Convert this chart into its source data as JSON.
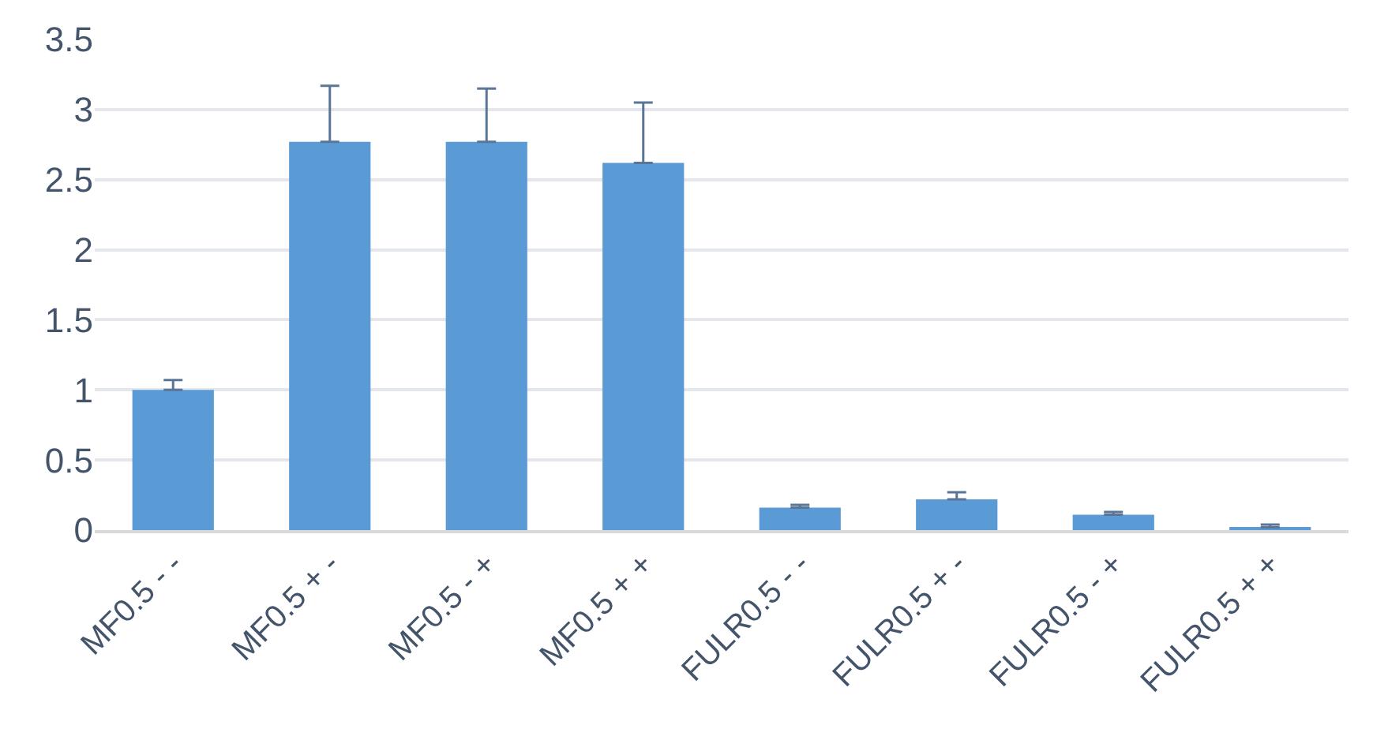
{
  "chart_data": {
    "type": "bar",
    "categories": [
      "MF0.5 - -",
      "MF0.5 + -",
      "MF0.5 - +",
      "MF0.5 + +",
      "FULR0.5 - -",
      "FULR0.5 + -",
      "FULR0.5 - +",
      "FULR0.5 + +"
    ],
    "values": [
      1.0,
      2.77,
      2.77,
      2.62,
      0.16,
      0.22,
      0.11,
      0.02
    ],
    "errors": [
      [
        1.0,
        1.07
      ],
      [
        2.77,
        3.17
      ],
      [
        2.77,
        3.15
      ],
      [
        2.62,
        3.05
      ],
      [
        0.16,
        0.18
      ],
      [
        0.22,
        0.27
      ],
      [
        0.11,
        0.13
      ],
      [
        0.02,
        0.04
      ]
    ],
    "color": "#5b9bd5",
    "ylim": [
      0,
      3.5
    ],
    "yticks": [
      0,
      0.5,
      1,
      1.5,
      2,
      2.5,
      3,
      3.5
    ],
    "grid": "y",
    "legend": false
  }
}
